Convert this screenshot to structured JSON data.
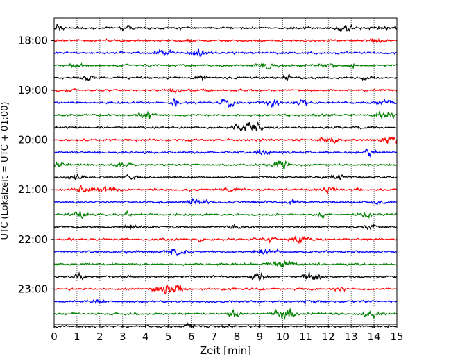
{
  "chart_data": {
    "type": "line",
    "title": "",
    "xlabel": "Zeit  [min]",
    "ylabel": "UTC (Lokalzeit = UTC + 01:00)",
    "xlim": [
      0,
      15
    ],
    "x_ticks": [
      0,
      1,
      2,
      3,
      4,
      5,
      6,
      7,
      8,
      9,
      10,
      11,
      12,
      13,
      14,
      15
    ],
    "y_tick_labels": [
      "18:00",
      "19:00",
      "20:00",
      "21:00",
      "22:00",
      "23:00"
    ],
    "traces_per_hour": 4,
    "trace_start_times": [
      "17:45",
      "18:00",
      "18:15",
      "18:30",
      "18:45",
      "19:00",
      "19:15",
      "19:30",
      "19:45",
      "20:00",
      "20:15",
      "20:30",
      "20:45",
      "21:00",
      "21:15",
      "21:30",
      "21:45",
      "22:00",
      "22:15",
      "22:30",
      "22:45",
      "23:00",
      "23:15",
      "23:30",
      "23:45"
    ],
    "trace_colors": [
      "#000000",
      "#ff0000",
      "#0000ff",
      "#008000"
    ],
    "grid": "vertical-dotted",
    "legend": "none"
  }
}
